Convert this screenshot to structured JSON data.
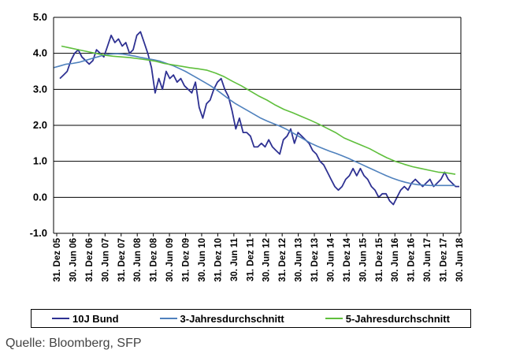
{
  "chart_data": {
    "type": "line",
    "y_ticks": [
      "5.0",
      "4.0",
      "3.0",
      "2.0",
      "1.0",
      "0.0",
      "-1.0"
    ],
    "ylim": [
      -1.0,
      5.0
    ],
    "x_ticks": [
      "31. Dez 05",
      "30. Jun 06",
      "31. Dez 06",
      "30. Jun 07",
      "31. Dez 07",
      "30. Jun 08",
      "31. Dez 08",
      "30. Jun 09",
      "31. Dez 09",
      "30. Jun 10",
      "31. Dez 10",
      "30. Jun 11",
      "31. Dez 11",
      "30. Jun 12",
      "31. Dez 12",
      "30. Jun 13",
      "31. Dez 13",
      "30. Jun 14",
      "31. Dez 14",
      "30. Jun 15",
      "31. Dez 15",
      "30. Jun 16",
      "31. Dez 16",
      "30. Jun 17",
      "31. Dez 17",
      "30. Jun 18"
    ],
    "grid": "horizontal",
    "legend_position": "bottom",
    "series": [
      {
        "name": "10J Bund",
        "color": "#2e3192",
        "values": [
          3.3,
          3.4,
          3.5,
          3.8,
          4.0,
          4.1,
          3.9,
          3.8,
          3.7,
          3.8,
          4.1,
          4.0,
          3.9,
          4.2,
          4.5,
          4.3,
          4.4,
          4.2,
          4.3,
          4.0,
          4.1,
          4.5,
          4.6,
          4.3,
          4.0,
          3.6,
          2.9,
          3.3,
          3.0,
          3.5,
          3.3,
          3.4,
          3.2,
          3.3,
          3.1,
          3.0,
          2.9,
          3.2,
          2.5,
          2.2,
          2.6,
          2.7,
          3.0,
          3.2,
          3.3,
          3.0,
          2.8,
          2.4,
          1.9,
          2.2,
          1.8,
          1.8,
          1.7,
          1.4,
          1.4,
          1.5,
          1.4,
          1.6,
          1.4,
          1.3,
          1.2,
          1.6,
          1.7,
          1.9,
          1.5,
          1.8,
          1.7,
          1.6,
          1.5,
          1.3,
          1.2,
          1.0,
          0.9,
          0.7,
          0.5,
          0.3,
          0.2,
          0.3,
          0.5,
          0.6,
          0.8,
          0.6,
          0.8,
          0.6,
          0.5,
          0.3,
          0.2,
          0.0,
          0.1,
          0.1,
          -0.1,
          -0.2,
          0.0,
          0.2,
          0.3,
          0.2,
          0.4,
          0.5,
          0.4,
          0.3,
          0.4,
          0.5,
          0.3,
          0.4,
          0.5,
          0.7,
          0.5,
          0.4,
          0.3,
          0.3
        ]
      },
      {
        "name": "3-Jahresdurchschnitt",
        "color": "#4f81bd",
        "values": [
          3.6,
          3.65,
          3.7,
          3.72,
          3.75,
          3.8,
          3.85,
          3.9,
          3.95,
          3.98,
          3.99,
          3.98,
          3.95,
          3.92,
          3.88,
          3.85,
          3.82,
          3.78,
          3.72,
          3.66,
          3.58,
          3.5,
          3.4,
          3.3,
          3.2,
          3.1,
          2.98,
          2.85,
          2.72,
          2.6,
          2.5,
          2.4,
          2.3,
          2.2,
          2.12,
          2.05,
          1.98,
          1.9,
          1.8,
          1.7,
          1.6,
          1.5,
          1.42,
          1.35,
          1.28,
          1.22,
          1.15,
          1.08,
          1.0,
          0.92,
          0.84,
          0.76,
          0.68,
          0.6,
          0.53,
          0.47,
          0.42,
          0.38,
          0.35,
          0.34,
          0.33,
          0.33,
          0.33,
          0.33,
          0.33
        ]
      },
      {
        "name": "5-Jahresdurchschnitt",
        "color": "#5fbf3c",
        "values": [
          4.2,
          4.15,
          4.1,
          4.05,
          4.0,
          3.95,
          3.92,
          3.9,
          3.88,
          3.85,
          3.82,
          3.78,
          3.72,
          3.68,
          3.64,
          3.6,
          3.57,
          3.53,
          3.45,
          3.35,
          3.22,
          3.1,
          2.96,
          2.82,
          2.7,
          2.56,
          2.44,
          2.35,
          2.25,
          2.15,
          2.04,
          1.92,
          1.8,
          1.65,
          1.55,
          1.45,
          1.35,
          1.22,
          1.1,
          1.0,
          0.92,
          0.85,
          0.8,
          0.75,
          0.7,
          0.68,
          0.64
        ]
      }
    ]
  },
  "source": "Quelle: Bloomberg, SFP"
}
